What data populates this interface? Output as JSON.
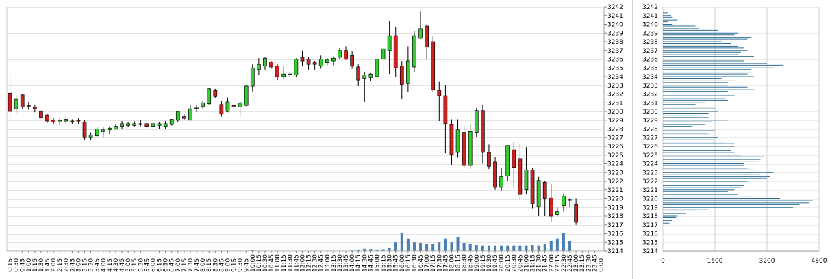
{
  "chart_data": [
    {
      "type": "candlestick",
      "y_ticks": [
        3214,
        3215,
        3216,
        3217,
        3218,
        3219,
        3220,
        3221,
        3222,
        3223,
        3224,
        3225,
        3226,
        3227,
        3228,
        3229,
        3230,
        3231,
        3232,
        3233,
        3234,
        3235,
        3236,
        3237,
        3238,
        3239,
        3240,
        3241,
        3242
      ],
      "ylim": [
        3214,
        3242
      ],
      "x_ticks": [
        "0:15",
        "0:30",
        "0:45",
        "1:00",
        "1:15",
        "1:30",
        "1:45",
        "2:00",
        "2:15",
        "2:30",
        "2:45",
        "3:00",
        "3:15",
        "3:30",
        "3:45",
        "4:00",
        "4:15",
        "4:30",
        "4:45",
        "5:00",
        "5:15",
        "5:30",
        "5:45",
        "6:00",
        "6:15",
        "6:30",
        "6:45",
        "7:00",
        "7:15",
        "7:30",
        "7:45",
        "8:00",
        "8:15",
        "8:30",
        "8:45",
        "9:00",
        "9:15",
        "9:30",
        "9:45",
        "10:00",
        "10:15",
        "10:30",
        "10:45",
        "11:00",
        "11:15",
        "11:30",
        "11:45",
        "12:00",
        "12:15",
        "12:30",
        "12:45",
        "13:00",
        "13:15",
        "13:30",
        "13:45",
        "14:00",
        "14:15",
        "14:30",
        "14:45",
        "15:00",
        "15:15",
        "15:30",
        "15:45",
        "16:00",
        "16:15",
        "16:30",
        "16:45",
        "17:00",
        "17:15",
        "17:30",
        "17:45",
        "18:00",
        "18:15",
        "18:30",
        "18:45",
        "19:00",
        "19:15",
        "19:30",
        "19:45",
        "20:00",
        "20:15",
        "20:30",
        "20:45",
        "21:00",
        "21:15",
        "21:30",
        "21:45",
        "22:00",
        "22:15",
        "22:30",
        "22:45",
        "23:00",
        "23:15",
        "23:30",
        "23:45",
        "0:00"
      ],
      "grid": true,
      "up_color": "#33cc33",
      "down_color": "#cc2222",
      "volume_color": "#4a7fb5",
      "candles": [
        {
          "o": 3232.1,
          "h": 3234.2,
          "l": 3229.3,
          "c": 3230.0
        },
        {
          "o": 3230.3,
          "h": 3231.9,
          "l": 3229.8,
          "c": 3231.4
        },
        {
          "o": 3231.9,
          "h": 3232.0,
          "l": 3230.3,
          "c": 3230.5
        },
        {
          "o": 3230.7,
          "h": 3231.1,
          "l": 3230.2,
          "c": 3230.6
        },
        {
          "o": 3230.5,
          "h": 3230.8,
          "l": 3229.9,
          "c": 3230.3
        },
        {
          "o": 3230.0,
          "h": 3230.1,
          "l": 3229.2,
          "c": 3229.3
        },
        {
          "o": 3229.6,
          "h": 3229.7,
          "l": 3228.7,
          "c": 3228.9
        },
        {
          "o": 3229.0,
          "h": 3229.2,
          "l": 3228.5,
          "c": 3228.8
        },
        {
          "o": 3228.9,
          "h": 3229.2,
          "l": 3228.4,
          "c": 3229.0
        },
        {
          "o": 3228.9,
          "h": 3229.4,
          "l": 3228.6,
          "c": 3229.1
        },
        {
          "o": 3228.9,
          "h": 3229.1,
          "l": 3228.6,
          "c": 3228.8
        },
        {
          "o": 3229.0,
          "h": 3229.2,
          "l": 3228.6,
          "c": 3228.9
        },
        {
          "o": 3228.8,
          "h": 3229.0,
          "l": 3226.7,
          "c": 3227.0
        },
        {
          "o": 3227.0,
          "h": 3227.6,
          "l": 3226.7,
          "c": 3227.3
        },
        {
          "o": 3227.2,
          "h": 3228.2,
          "l": 3227.0,
          "c": 3228.0
        },
        {
          "o": 3227.7,
          "h": 3228.2,
          "l": 3227.0,
          "c": 3227.9
        },
        {
          "o": 3227.9,
          "h": 3228.3,
          "l": 3227.4,
          "c": 3228.1
        },
        {
          "o": 3228.0,
          "h": 3228.5,
          "l": 3227.9,
          "c": 3228.3
        },
        {
          "o": 3228.3,
          "h": 3228.9,
          "l": 3228.0,
          "c": 3228.6
        },
        {
          "o": 3228.4,
          "h": 3228.8,
          "l": 3228.2,
          "c": 3228.6
        },
        {
          "o": 3228.4,
          "h": 3228.9,
          "l": 3228.2,
          "c": 3228.6
        },
        {
          "o": 3228.5,
          "h": 3229.0,
          "l": 3228.3,
          "c": 3228.6
        },
        {
          "o": 3228.6,
          "h": 3228.9,
          "l": 3228.0,
          "c": 3228.3
        },
        {
          "o": 3228.3,
          "h": 3228.9,
          "l": 3227.9,
          "c": 3228.6
        },
        {
          "o": 3228.4,
          "h": 3228.8,
          "l": 3228.0,
          "c": 3228.6
        },
        {
          "o": 3228.3,
          "h": 3228.9,
          "l": 3228.0,
          "c": 3228.6
        },
        {
          "o": 3228.5,
          "h": 3229.1,
          "l": 3228.4,
          "c": 3229.1
        },
        {
          "o": 3229.0,
          "h": 3230.0,
          "l": 3228.8,
          "c": 3230.0
        },
        {
          "o": 3229.4,
          "h": 3229.7,
          "l": 3229.0,
          "c": 3229.2
        },
        {
          "o": 3229.0,
          "h": 3230.8,
          "l": 3229.0,
          "c": 3230.3
        },
        {
          "o": 3230.4,
          "h": 3230.7,
          "l": 3229.9,
          "c": 3230.4
        },
        {
          "o": 3230.6,
          "h": 3231.2,
          "l": 3230.3,
          "c": 3231.0
        },
        {
          "o": 3230.9,
          "h": 3232.7,
          "l": 3230.8,
          "c": 3232.6
        },
        {
          "o": 3232.4,
          "h": 3232.6,
          "l": 3231.5,
          "c": 3231.7
        },
        {
          "o": 3230.8,
          "h": 3231.2,
          "l": 3229.4,
          "c": 3229.7
        },
        {
          "o": 3230.0,
          "h": 3231.6,
          "l": 3229.9,
          "c": 3231.1
        },
        {
          "o": 3230.7,
          "h": 3231.0,
          "l": 3229.6,
          "c": 3230.6
        },
        {
          "o": 3230.5,
          "h": 3231.2,
          "l": 3229.4,
          "c": 3231.0
        },
        {
          "o": 3230.7,
          "h": 3233.0,
          "l": 3230.6,
          "c": 3232.9
        },
        {
          "o": 3232.9,
          "h": 3235.4,
          "l": 3232.3,
          "c": 3235.0
        },
        {
          "o": 3234.8,
          "h": 3236.1,
          "l": 3234.2,
          "c": 3235.4
        },
        {
          "o": 3235.2,
          "h": 3236.2,
          "l": 3234.8,
          "c": 3236.1
        },
        {
          "o": 3235.7,
          "h": 3235.8,
          "l": 3234.9,
          "c": 3235.1
        },
        {
          "o": 3235.2,
          "h": 3235.4,
          "l": 3233.6,
          "c": 3234.0
        },
        {
          "o": 3234.0,
          "h": 3235.2,
          "l": 3233.7,
          "c": 3234.3
        },
        {
          "o": 3234.2,
          "h": 3234.5,
          "l": 3234.0,
          "c": 3234.3
        },
        {
          "o": 3234.2,
          "h": 3236.1,
          "l": 3234.0,
          "c": 3236.0
        },
        {
          "o": 3236.2,
          "h": 3237.0,
          "l": 3235.2,
          "c": 3235.8
        },
        {
          "o": 3236.0,
          "h": 3236.2,
          "l": 3234.8,
          "c": 3235.4
        },
        {
          "o": 3235.6,
          "h": 3235.8,
          "l": 3234.8,
          "c": 3235.4
        },
        {
          "o": 3235.2,
          "h": 3236.4,
          "l": 3234.9,
          "c": 3236.0
        },
        {
          "o": 3235.6,
          "h": 3236.1,
          "l": 3235.3,
          "c": 3235.9
        },
        {
          "o": 3235.8,
          "h": 3236.3,
          "l": 3235.3,
          "c": 3236.1
        },
        {
          "o": 3236.2,
          "h": 3237.3,
          "l": 3236.0,
          "c": 3237.0
        },
        {
          "o": 3237.0,
          "h": 3237.5,
          "l": 3235.9,
          "c": 3236.0
        },
        {
          "o": 3236.4,
          "h": 3236.9,
          "l": 3234.9,
          "c": 3235.2
        },
        {
          "o": 3235.1,
          "h": 3235.4,
          "l": 3232.9,
          "c": 3233.6
        },
        {
          "o": 3233.8,
          "h": 3234.5,
          "l": 3231.1,
          "c": 3234.2
        },
        {
          "o": 3233.9,
          "h": 3234.4,
          "l": 3233.5,
          "c": 3234.3
        },
        {
          "o": 3234.0,
          "h": 3236.6,
          "l": 3233.6,
          "c": 3236.0
        },
        {
          "o": 3236.0,
          "h": 3237.6,
          "l": 3234.0,
          "c": 3237.2
        },
        {
          "o": 3237.0,
          "h": 3240.4,
          "l": 3234.3,
          "c": 3238.7
        },
        {
          "o": 3238.7,
          "h": 3239.7,
          "l": 3234.0,
          "c": 3235.0
        },
        {
          "o": 3235.2,
          "h": 3235.8,
          "l": 3231.4,
          "c": 3233.1
        },
        {
          "o": 3233.2,
          "h": 3237.5,
          "l": 3232.2,
          "c": 3235.8
        },
        {
          "o": 3235.1,
          "h": 3239.2,
          "l": 3234.5,
          "c": 3238.7
        },
        {
          "o": 3238.4,
          "h": 3241.5,
          "l": 3238.3,
          "c": 3239.5
        },
        {
          "o": 3239.8,
          "h": 3240.0,
          "l": 3236.0,
          "c": 3237.4
        },
        {
          "o": 3238.0,
          "h": 3238.6,
          "l": 3232.2,
          "c": 3232.5
        },
        {
          "o": 3232.4,
          "h": 3233.4,
          "l": 3228.9,
          "c": 3231.8
        },
        {
          "o": 3231.8,
          "h": 3233.0,
          "l": 3225.2,
          "c": 3228.6
        },
        {
          "o": 3228.5,
          "h": 3229.1,
          "l": 3223.9,
          "c": 3225.1
        },
        {
          "o": 3225.3,
          "h": 3229.1,
          "l": 3224.7,
          "c": 3227.9
        },
        {
          "o": 3227.6,
          "h": 3228.4,
          "l": 3223.6,
          "c": 3223.8
        },
        {
          "o": 3223.8,
          "h": 3228.6,
          "l": 3223.4,
          "c": 3227.7
        },
        {
          "o": 3227.6,
          "h": 3230.4,
          "l": 3227.1,
          "c": 3230.1
        },
        {
          "o": 3230.1,
          "h": 3230.8,
          "l": 3224.0,
          "c": 3225.3
        },
        {
          "o": 3225.3,
          "h": 3226.2,
          "l": 3223.4,
          "c": 3223.7
        },
        {
          "o": 3224.2,
          "h": 3224.8,
          "l": 3221.0,
          "c": 3221.3
        },
        {
          "o": 3221.3,
          "h": 3223.5,
          "l": 3220.9,
          "c": 3222.5
        },
        {
          "o": 3222.6,
          "h": 3225.9,
          "l": 3222.0,
          "c": 3226.1
        },
        {
          "o": 3225.6,
          "h": 3226.5,
          "l": 3221.2,
          "c": 3223.6
        },
        {
          "o": 3224.6,
          "h": 3226.3,
          "l": 3219.8,
          "c": 3220.5
        },
        {
          "o": 3221.0,
          "h": 3225.9,
          "l": 3220.5,
          "c": 3223.3
        },
        {
          "o": 3223.3,
          "h": 3223.5,
          "l": 3218.9,
          "c": 3219.4
        },
        {
          "o": 3219.1,
          "h": 3222.5,
          "l": 3218.0,
          "c": 3222.1
        },
        {
          "o": 3221.9,
          "h": 3222.0,
          "l": 3218.0,
          "c": 3220.0
        },
        {
          "o": 3220.1,
          "h": 3221.7,
          "l": 3217.3,
          "c": 3218.0
        },
        {
          "o": 3218.2,
          "h": 3219.0,
          "l": 3218.0,
          "c": 3218.5
        },
        {
          "o": 3219.2,
          "h": 3220.6,
          "l": 3218.5,
          "c": 3220.3
        },
        {
          "o": 3219.9,
          "h": 3220.1,
          "l": 3219.0,
          "c": 3219.8
        },
        {
          "o": 3219.3,
          "h": 3220.0,
          "l": 3217.0,
          "c": 3217.3
        },
        null,
        null,
        null,
        null
      ],
      "volume": [
        0,
        0,
        0,
        0,
        0,
        0,
        0,
        0,
        0,
        0,
        0,
        0,
        0,
        0,
        0,
        0,
        0,
        0,
        0,
        0,
        0,
        0,
        0,
        0,
        0,
        0,
        0,
        0,
        0,
        0,
        0,
        0,
        0,
        0,
        0,
        0,
        0,
        0,
        0,
        0.08,
        0,
        0,
        0,
        0,
        0,
        0,
        0,
        0,
        0,
        0,
        0,
        0,
        0,
        0,
        0,
        0.1,
        0.12,
        0.2,
        0.18,
        0.12,
        0.15,
        0.3,
        0.9,
        1.9,
        1.3,
        0.9,
        0.8,
        0.7,
        0.7,
        0.9,
        1.3,
        0.9,
        1.5,
        0.8,
        0.7,
        0.6,
        0.5,
        0.5,
        0.5,
        0.5,
        0.5,
        0.5,
        0.5,
        0.5,
        0.6,
        0.5,
        0.7,
        1.0,
        1.3,
        1.9,
        1.0,
        0,
        0,
        0,
        0,
        0
      ]
    },
    {
      "type": "bar",
      "orientation": "horizontal",
      "y_ticks": [
        3214,
        3215,
        3216,
        3217,
        3218,
        3219,
        3220,
        3221,
        3222,
        3223,
        3224,
        3225,
        3226,
        3227,
        3228,
        3229,
        3230,
        3231,
        3232,
        3233,
        3234,
        3235,
        3236,
        3237,
        3238,
        3239,
        3240,
        3241,
        3242
      ],
      "x_ticks": [
        "0",
        "1600",
        "3200",
        "4800"
      ],
      "xlim": [
        0,
        4800
      ],
      "bar_color": "#2e6e95",
      "bars": [
        [
          3217.2,
          200
        ],
        [
          3217.5,
          300
        ],
        [
          3217.8,
          400
        ],
        [
          3218.0,
          450
        ],
        [
          3218.3,
          700
        ],
        [
          3218.6,
          1000
        ],
        [
          3218.8,
          1400
        ],
        [
          3219.0,
          4000
        ],
        [
          3219.3,
          4200
        ],
        [
          3219.5,
          4500
        ],
        [
          3219.8,
          4600
        ],
        [
          3220.0,
          3600
        ],
        [
          3220.3,
          2700
        ],
        [
          3220.5,
          2300
        ],
        [
          3220.8,
          2000
        ],
        [
          3221.0,
          2200
        ],
        [
          3221.3,
          2400
        ],
        [
          3221.5,
          2500
        ],
        [
          3221.8,
          2100
        ],
        [
          3222.0,
          2600
        ],
        [
          3222.3,
          3200
        ],
        [
          3222.5,
          3300
        ],
        [
          3222.8,
          3000
        ],
        [
          3223.0,
          3400
        ],
        [
          3223.3,
          2800
        ],
        [
          3223.5,
          2600
        ],
        [
          3223.8,
          2500
        ],
        [
          3224.0,
          2500
        ],
        [
          3224.3,
          2900
        ],
        [
          3224.5,
          3000
        ],
        [
          3224.8,
          3100
        ],
        [
          3225.0,
          2400
        ],
        [
          3225.3,
          2200
        ],
        [
          3225.5,
          2100
        ],
        [
          3225.8,
          2500
        ],
        [
          3226.0,
          2200
        ],
        [
          3226.3,
          2200
        ],
        [
          3226.5,
          1900
        ],
        [
          3226.8,
          1600
        ],
        [
          3227.0,
          1700
        ],
        [
          3227.3,
          1500
        ],
        [
          3227.5,
          1400
        ],
        [
          3227.8,
          1600
        ],
        [
          3228.0,
          1500
        ],
        [
          3228.3,
          900
        ],
        [
          3228.5,
          1300
        ],
        [
          3228.8,
          1500
        ],
        [
          3229.0,
          2000
        ],
        [
          3229.3,
          1400
        ],
        [
          3229.5,
          1200
        ],
        [
          3229.8,
          1400
        ],
        [
          3230.0,
          1700
        ],
        [
          3230.3,
          1600
        ],
        [
          3230.5,
          1600
        ],
        [
          3230.8,
          1000
        ],
        [
          3231.0,
          1300
        ],
        [
          3231.3,
          2000
        ],
        [
          3231.5,
          1900
        ],
        [
          3231.8,
          2200
        ],
        [
          3232.0,
          2600
        ],
        [
          3232.3,
          2000
        ],
        [
          3232.5,
          2800
        ],
        [
          3232.8,
          2600
        ],
        [
          3233.0,
          2000
        ],
        [
          3233.3,
          2000
        ],
        [
          3233.5,
          2200
        ],
        [
          3233.8,
          1800
        ],
        [
          3234.0,
          2800
        ],
        [
          3234.3,
          2600
        ],
        [
          3234.5,
          2700
        ],
        [
          3234.8,
          2700
        ],
        [
          3235.0,
          3400
        ],
        [
          3235.3,
          3700
        ],
        [
          3235.5,
          3200
        ],
        [
          3235.8,
          2500
        ],
        [
          3236.0,
          3200
        ],
        [
          3236.3,
          2800
        ],
        [
          3236.5,
          2300
        ],
        [
          3236.8,
          2400
        ],
        [
          3237.0,
          2600
        ],
        [
          3237.3,
          2500
        ],
        [
          3237.5,
          2300
        ],
        [
          3237.8,
          2100
        ],
        [
          3238.0,
          1800
        ],
        [
          3238.3,
          2600
        ],
        [
          3238.5,
          2700
        ],
        [
          3238.8,
          2200
        ],
        [
          3239.0,
          2300
        ],
        [
          3239.3,
          1700
        ],
        [
          3239.5,
          1100
        ],
        [
          3239.8,
          1000
        ],
        [
          3240.0,
          300
        ],
        [
          3240.3,
          150
        ],
        [
          3240.5,
          450
        ],
        [
          3240.8,
          300
        ],
        [
          3241.0,
          250
        ],
        [
          3241.3,
          150
        ]
      ]
    }
  ]
}
